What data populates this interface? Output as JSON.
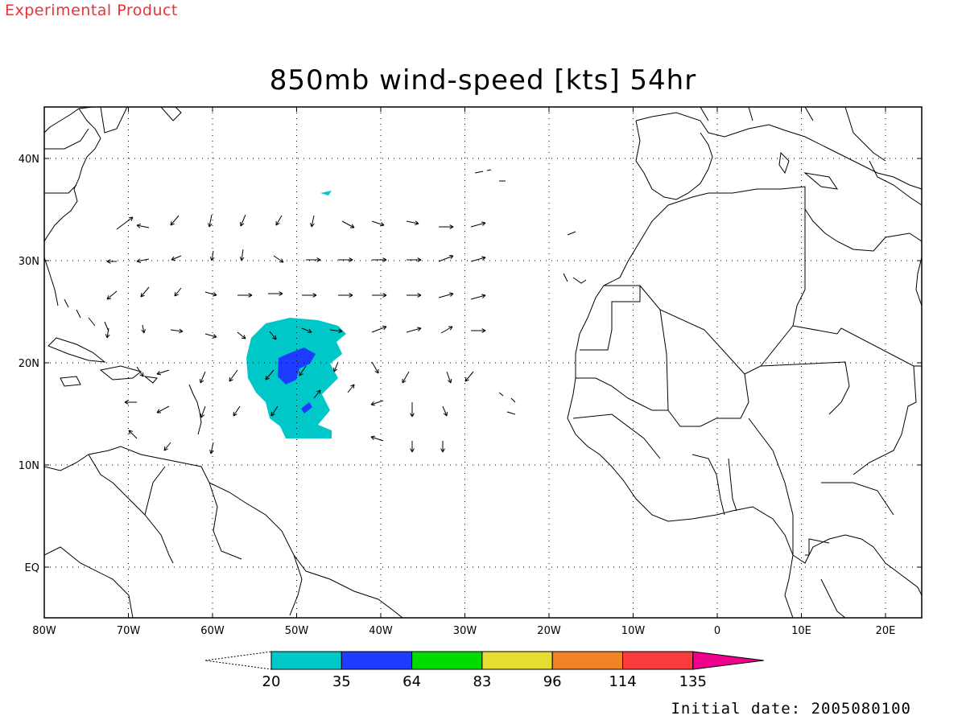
{
  "watermark": "Experimental Product",
  "title": "850mb wind-speed [kts] 54hr",
  "footer": "Initial date: 2005080100",
  "map": {
    "lon_labels": [
      "80W",
      "70W",
      "60W",
      "50W",
      "40W",
      "30W",
      "20W",
      "10W",
      "0",
      "10E",
      "20E"
    ],
    "lat_labels": [
      "40N",
      "30N",
      "20N",
      "10N",
      "EQ"
    ]
  },
  "colorbar": {
    "levels": [
      "20",
      "35",
      "64",
      "83",
      "96",
      "114",
      "135"
    ],
    "colors": [
      "#00c8c8",
      "#1e3cff",
      "#00dc00",
      "#e6dc32",
      "#f08228",
      "#fa3c3c",
      "#f0008c"
    ]
  },
  "shading": [
    {
      "level": "20-35",
      "color": "#00c8c8"
    },
    {
      "level": "35-64",
      "color": "#1e3cff"
    }
  ]
}
